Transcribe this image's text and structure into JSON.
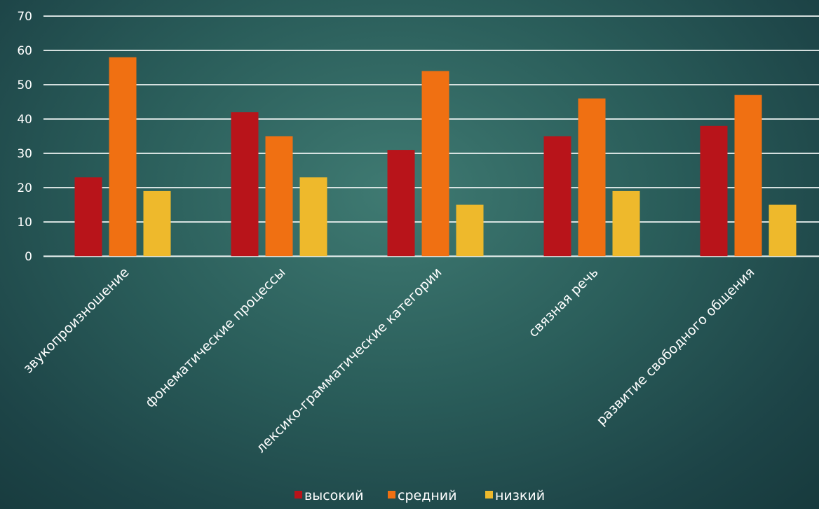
{
  "chart_data": {
    "type": "bar",
    "categories": [
      "звукопроизношение",
      "фонематические процессы",
      "лексико-грамматические категории",
      "связная речь",
      "развитие свободного общения"
    ],
    "series": [
      {
        "name": "высокий",
        "color": "#b8141a",
        "values": [
          23,
          42,
          31,
          35,
          38
        ]
      },
      {
        "name": "средний",
        "color": "#f07012",
        "values": [
          58,
          35,
          54,
          46,
          47
        ]
      },
      {
        "name": "низкий",
        "color": "#eeb92c",
        "values": [
          19,
          23,
          15,
          19,
          15
        ]
      }
    ],
    "yticks": [
      "0",
      "10",
      "20",
      "30",
      "40",
      "50",
      "60",
      "70"
    ],
    "ylim": [
      0,
      70
    ],
    "grid": true,
    "legend_position": "bottom",
    "title": "",
    "xlabel": "",
    "ylabel": ""
  }
}
